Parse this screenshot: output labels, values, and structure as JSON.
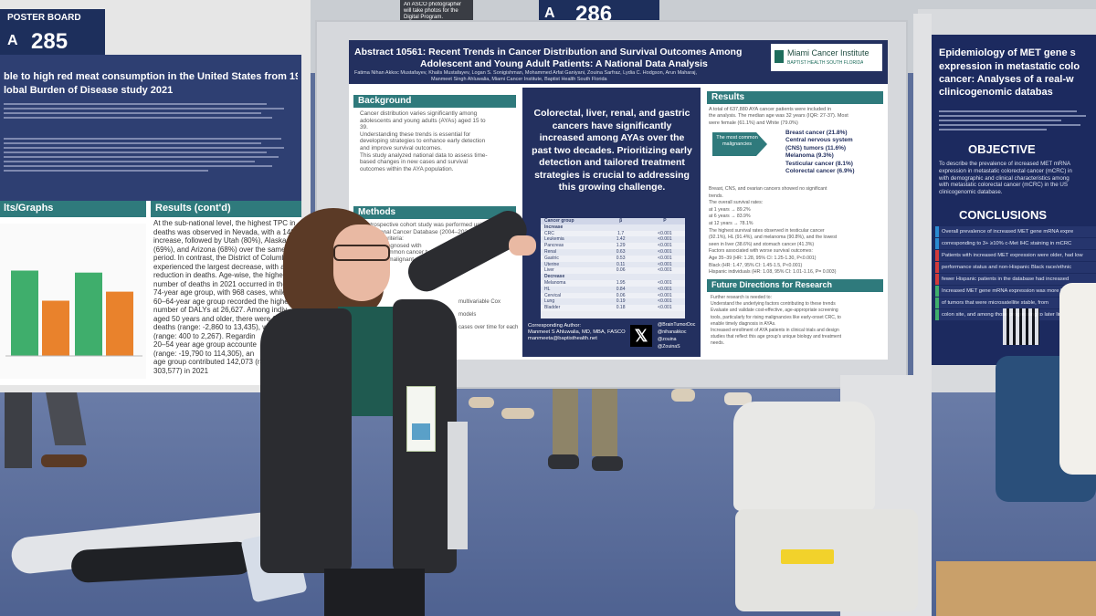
{
  "left_board": {
    "label_small": "POSTER BOARD",
    "label_letter": "A",
    "label_number": "285",
    "title": "ble to high red meat consumption in the United States from 1990-2021: An insight",
    "title2": "lobal Burden of Disease study 2021",
    "sec_graphs": "lts/Graphs",
    "sec_results": "Results (cont'd)",
    "results_lines": [
      "At the sub-national level, the highest TPC in",
      "deaths was observed in Nevada, with a 148%",
      "increase, followed by Utah (80%), Alaska",
      "(69%), and Arizona (68%) over the same",
      "period. In contrast, the District of Columbia",
      "experienced the largest decrease, with a 39",
      "reduction in deaths. Age-wise, the highes",
      "number of deaths in 2021 occurred in the",
      "74-year age group, with 968 cases, while",
      "60–64-year age group recorded the highe",
      "number of DALYs at 26,627. Among indiv",
      "aged 50 years and older, there were 6,2",
      "deaths (range: -2,860 to 13,435), with",
      "(range: 400 to 2,267). Regardin",
      "20–54 year age group accounte",
      "(range: -19,790 to 114,305), an",
      "age group contributed 142,073 (ra",
      "303,577) in 2021"
    ]
  },
  "center_board": {
    "label_letter": "A",
    "label_number": "286",
    "photo_note": "An ASCO photographer will take photos for the Digital Program.",
    "poster": {
      "title_line1": "Abstract 10561: Recent Trends in Cancer Distribution and Survival Outcomes Among",
      "title_line2": "Adolescent and Young Adult Patients: A National Data Analysis",
      "authors1": "Fatima Nihan Akkoc Mustafayev, Khalis Mustafayev, Logan S. Sonigishman, Mohammed Arfat Ganiyani, Zouina Sarfraz, Lydia C. Hodgson, Arun Maharaj,",
      "authors2": "Manmeet Singh Ahluwalia, Miami Cancer Institute, Baptist Health South Florida",
      "logo_name": "Miami Cancer Institute",
      "logo_sub": "BAPTIST HEALTH SOUTH FLORIDA",
      "sec_background": "Background",
      "background_text": [
        "Cancer distribution varies significantly among",
        "adolescents and young adults (AYAs) aged 15 to",
        "39.",
        "Understanding these trends is essential for",
        "developing strategies to enhance early detection",
        "and improve survival outcomes.",
        "This study analyzed national data to assess time-",
        "based changes in new cases and survival",
        "outcomes within the AYA population."
      ],
      "sec_methods": "Methods",
      "methods_text": [
        "A retrospective cohort study was performed using",
        "the National Cancer Database (2004–2021).",
        "Inclusion criteria:",
        "Patients diagnosed with",
        "20 most common cancer types b",
        "Confirmed malignant neop",
        "of follow-up"
      ],
      "methods_tail": [
        "multivariable Cox",
        "models",
        "cases over time for each cancer"
      ],
      "highlight": "Colorectal, liver, renal, and gastric cancers have significantly increased among AYAs over the past two decades. Prioritizing early detection and tailored treatment strategies is crucial to addressing this growing challenge.",
      "table": {
        "headers": [
          "Cancer group",
          "β",
          "P"
        ],
        "rows": [
          [
            "Increase",
            "",
            ""
          ],
          [
            "CRC",
            "1.7",
            "<0.001"
          ],
          [
            "Leukemia",
            "1.42",
            "<0.001"
          ],
          [
            "Pancreas",
            "1.29",
            "<0.001"
          ],
          [
            "Renal",
            "0.63",
            "<0.001"
          ],
          [
            "Gastric",
            "0.53",
            "<0.001"
          ],
          [
            "Uterine",
            "0.11",
            "<0.001"
          ],
          [
            "Liver",
            "0.06",
            "<0.001"
          ],
          [
            "Decrease",
            "",
            ""
          ],
          [
            "Melanoma",
            "1.95",
            "<0.001"
          ],
          [
            "HL",
            "0.84",
            "<0.001"
          ],
          [
            "Cervical",
            "0.06",
            "<0.001"
          ],
          [
            "Lung",
            "0.19",
            "<0.001"
          ],
          [
            "Bladder",
            "0.18",
            "<0.001"
          ]
        ]
      },
      "contact_label": "Corresponding Author:",
      "contact_name": "Manmeet S Ahluwalia, MD, MBA, FASCO",
      "contact_email": "manmeeta@baptisthealth.net",
      "x_handles": [
        "@BrainTumorDoc",
        "@nihanakkoc",
        "@zouina",
        "@ZouinaS"
      ],
      "sec_results": "Results",
      "results_intro": [
        "A total of 637,880 AYA cancer patients were included in",
        "the analysis. The median age was 32 years (IQR: 27-37). Most",
        "were female (61.1%) and White (79.0%)"
      ],
      "arrow_label": "The most common malignancies",
      "malignancies": [
        "Breast cancer (21.8%)",
        "Central nervous system",
        "(CNS) tumors (11.6%)",
        "Melanoma (9.3%)",
        "Testicular cancer (8.1%)",
        "Colorectal cancer (6.9%)"
      ],
      "results_more": [
        "Breast, CNS, and ovarian cancers showed no significant",
        "trends.",
        "The overall survival rates:",
        "at 1 years → 89.2%",
        "at 6 years → 83.9%",
        "at 12 years → 78.1%",
        "The highest survival rates observed in testicular cancer",
        "(92.1%), HL (91.4%), and melanoma (90.8%), and the lowest",
        "seen in liver (38.6%) and stomach cancer (41.3%)",
        "Factors associated with worse survival outcomes:",
        "Age 35–39 (HR: 1.28, 95% CI: 1.25-1.30, P<0.001)",
        "Black (HR: 1.47, 95% CI: 1.45-1.5, P<0.001)",
        "Hispanic individuals (HR: 1.08, 95% CI: 1.01-1.16, P= 0.003)"
      ],
      "sec_future": "Future Directions for Research",
      "future_lines": [
        "Further research is needed to:",
        "Understand the underlying factors contributing to these trends",
        "Evaluate and validate cost-effective, age-appropriate screening",
        "tools, particularly for rising malignancies like early-onset CRC, to",
        "enable timely diagnosis in AYAs.",
        "Increased enrollment of AYA patients in clinical trials and design",
        "studies that reflect this age group's unique biology and treatment",
        "needs."
      ]
    }
  },
  "right_board": {
    "title": "Epidemiology of MET gene s",
    "title_lines": [
      "expression in metastatic colo",
      "cancer: Analyses of a real-w",
      "clinicogenomic databas"
    ],
    "sec_objective": "OBJECTIVE",
    "objective_text": [
      "To describe the prevalence of increased MET mRNA",
      "expression in metastatic colorectal cancer (mCRC) in",
      "with demographic and clinical characteristics among",
      "with metastatic colorectal cancer (mCRC) in the US",
      "clinicogenomic database."
    ],
    "sec_conclusions": "CONCLUSIONS",
    "conclusions": [
      "Overall prevalence of increased MET gene mRNA expre",
      "corresponding to 3+ ≥10% c-Met IHC staining in mCRC",
      "Patients with increased MET expression were older, had low",
      "performance status and non-Hispanic Black race/ethnic",
      "fewer Hispanic patients in the database had increased",
      "Increased MET gene mRNA expression was more frequ",
      "of tumors that were microsatellite stable, from",
      "colon site, and among those progressing to later lines"
    ]
  },
  "colors": {
    "carpet": "#5d6f9a",
    "poster_navy": "#23305f",
    "poster_teal": "#2f7a7c",
    "bar_green": "#3fae6c",
    "bar_orange": "#e9822c"
  },
  "left_chart": {
    "type": "bar",
    "series": [
      {
        "color": "green",
        "values": [
          85,
          83
        ]
      },
      {
        "color": "orange",
        "values": [
          55,
          64
        ]
      }
    ]
  }
}
